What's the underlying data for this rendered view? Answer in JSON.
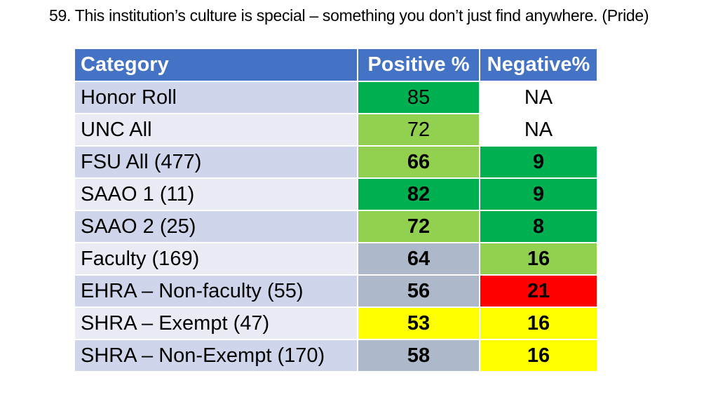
{
  "title": "59. This institution’s culture is special – something you don’t just find anywhere. (Pride)",
  "table": {
    "headers": [
      "Category",
      "Positive %",
      "Negative%"
    ],
    "rows": [
      {
        "category": "Honor Roll",
        "positive": "85",
        "negative": "NA",
        "cat_bg": "#cfd5ea",
        "pos_bg": "#00b050",
        "neg_bg": "#ffffff",
        "bold": false
      },
      {
        "category": "UNC All",
        "positive": "72",
        "negative": "NA",
        "cat_bg": "#e9ebf5",
        "pos_bg": "#92d050",
        "neg_bg": "#ffffff",
        "bold": false
      },
      {
        "category": "FSU All (477)",
        "positive": "66",
        "negative": "9",
        "cat_bg": "#cfd5ea",
        "pos_bg": "#92d050",
        "neg_bg": "#00b050",
        "bold": true
      },
      {
        "category": "SAAO 1 (11)",
        "positive": "82",
        "negative": "9",
        "cat_bg": "#e9ebf5",
        "pos_bg": "#00b050",
        "neg_bg": "#00b050",
        "bold": true
      },
      {
        "category": "SAAO 2 (25)",
        "positive": "72",
        "negative": "8",
        "cat_bg": "#cfd5ea",
        "pos_bg": "#92d050",
        "neg_bg": "#00b050",
        "bold": true
      },
      {
        "category": "Faculty (169)",
        "positive": "64",
        "negative": "16",
        "cat_bg": "#e9ebf5",
        "pos_bg": "#adb9ca",
        "neg_bg": "#92d050",
        "bold": true
      },
      {
        "category": "EHRA – Non-faculty (55)",
        "positive": "56",
        "negative": "21",
        "cat_bg": "#cfd5ea",
        "pos_bg": "#adb9ca",
        "neg_bg": "#ff0000",
        "bold": true
      },
      {
        "category": "SHRA – Exempt (47)",
        "positive": "53",
        "negative": "16",
        "cat_bg": "#e9ebf5",
        "pos_bg": "#ffff00",
        "neg_bg": "#ffff00",
        "bold": true
      },
      {
        "category": "SHRA – Non-Exempt (170)",
        "positive": "58",
        "negative": "16",
        "cat_bg": "#cfd5ea",
        "pos_bg": "#adb9ca",
        "neg_bg": "#ffff00",
        "bold": true
      }
    ]
  },
  "colors": {
    "header_bg": "#4472c4",
    "header_text": "#ffffff"
  }
}
